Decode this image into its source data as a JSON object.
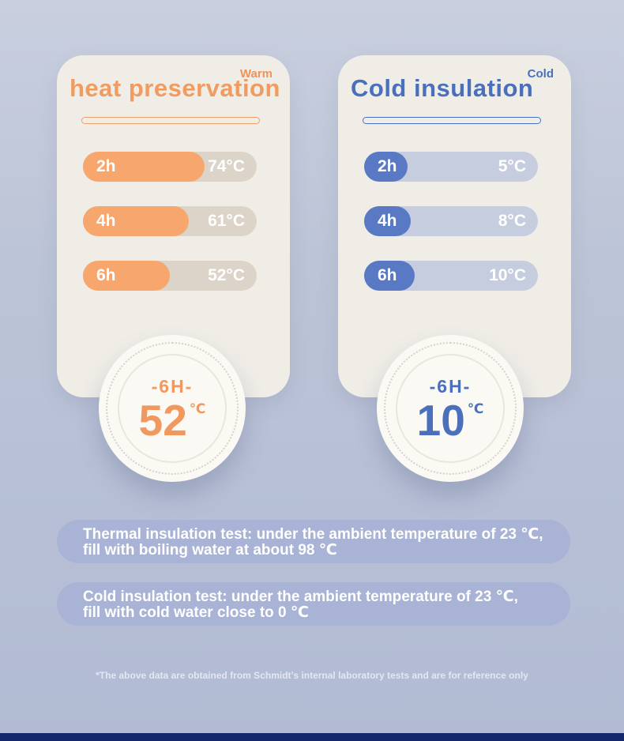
{
  "colors": {
    "background": "#bcc4d7",
    "card_background": "#f0ede7",
    "warm_accent": "#f09b60",
    "warm_bar_fill": "#f7a76e",
    "warm_bar_track": "#ddd4c9",
    "cold_accent": "#4a70bd",
    "cold_bar_fill": "#5a79c4",
    "cold_bar_track": "#c5cdde",
    "note_background": "#a8b3d5",
    "footer_bar": "#13256b",
    "badge_background": "#fbf9f4"
  },
  "chart_data": [
    {
      "type": "bar",
      "tag": "Warm",
      "title": "heat preservation",
      "categories": [
        "2h",
        "4h",
        "6h"
      ],
      "values": [
        74,
        61,
        52
      ],
      "unit": "°C",
      "value_labels": [
        "74°C",
        "61°C",
        "52°C"
      ],
      "fill_pct": [
        70,
        61,
        50
      ],
      "badge": {
        "duration": "-6H-",
        "value": "52",
        "unit": "℃"
      }
    },
    {
      "type": "bar",
      "tag": "Cold",
      "title": "Cold insulation",
      "categories": [
        "2h",
        "4h",
        "6h"
      ],
      "values": [
        5,
        8,
        10
      ],
      "unit": "°C",
      "value_labels": [
        "5°C",
        "8°C",
        "10°C"
      ],
      "fill_pct": [
        25,
        27,
        29
      ],
      "badge": {
        "duration": "-6H-",
        "value": "10",
        "unit": "℃"
      }
    }
  ],
  "notes": [
    {
      "line1": "Thermal insulation test: under the ambient temperature of 23 ℃,",
      "line2": "fill with boiling water at about 98 ℃"
    },
    {
      "line1": "Cold insulation test: under the ambient temperature of 23 ℃,",
      "line2": "fill with cold water close to 0 ℃"
    }
  ],
  "footnote": "*The above data are obtained from Schmidt’s internal laboratory tests and are for reference only"
}
